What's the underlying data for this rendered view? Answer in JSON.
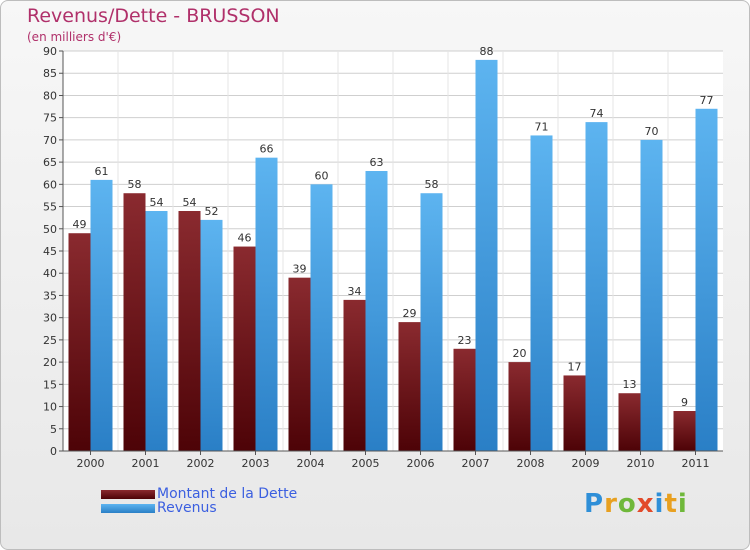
{
  "header": {
    "title": "Revenus/Dette - BRUSSON",
    "subtitle": "(en milliers d'€)"
  },
  "legend": {
    "items": [
      {
        "label": "Montant de la Dette",
        "color": "#6b0f14"
      },
      {
        "label": "Revenus",
        "color": "#3e9be3"
      }
    ]
  },
  "logo": {
    "text": "Proxiti"
  },
  "colors": {
    "dette": "#6b0f14",
    "revenus": "#3e9be3",
    "title": "#b0306a",
    "legend_text": "#3b5fe0"
  },
  "chart_data": {
    "type": "bar",
    "title": "Revenus/Dette - BRUSSON",
    "subtitle": "(en milliers d'€)",
    "xlabel": "",
    "ylabel": "",
    "ylim": [
      0,
      90
    ],
    "yticks": [
      0,
      5,
      10,
      15,
      20,
      25,
      30,
      35,
      40,
      45,
      50,
      55,
      60,
      65,
      70,
      75,
      80,
      85,
      90
    ],
    "grid": true,
    "legend_position": "bottom-left",
    "categories": [
      "2000",
      "2001",
      "2002",
      "2003",
      "2004",
      "2005",
      "2006",
      "2007",
      "2008",
      "2009",
      "2010",
      "2011"
    ],
    "series": [
      {
        "name": "Montant de la Dette",
        "values": [
          49,
          58,
          54,
          46,
          39,
          34,
          29,
          23,
          20,
          17,
          13,
          9
        ]
      },
      {
        "name": "Revenus",
        "values": [
          61,
          54,
          52,
          66,
          60,
          63,
          58,
          88,
          71,
          74,
          70,
          77
        ]
      }
    ]
  }
}
